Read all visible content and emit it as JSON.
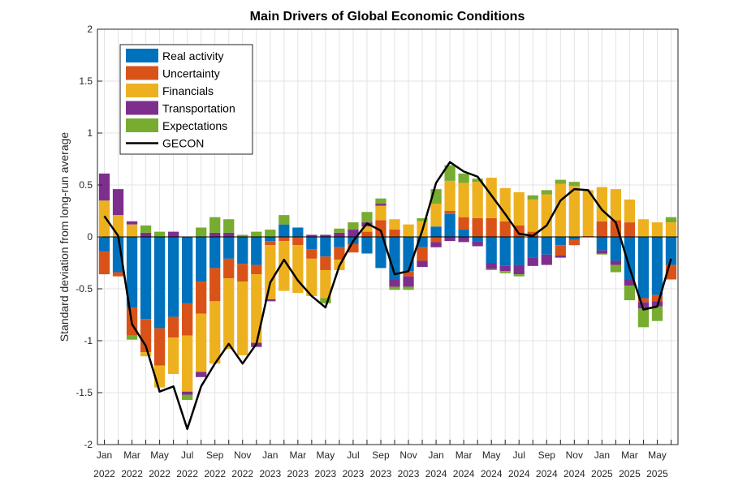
{
  "chart_data": {
    "type": "bar",
    "stacked": true,
    "title": "Main Drivers of Global Economic Conditions",
    "xlabel": "",
    "ylabel": "Standard deviation from long-run average",
    "ylim": [
      -2,
      2
    ],
    "yticks": [
      "-2",
      "-1.5",
      "-1",
      "-0.5",
      "0",
      "0.5",
      "1",
      "1.5",
      "2"
    ],
    "grid": true,
    "legend_position": "top-left",
    "categories": [
      "Jan 2022",
      "Feb 2022",
      "Mar 2022",
      "Apr 2022",
      "May 2022",
      "Jun 2022",
      "Jul 2022",
      "Aug 2022",
      "Sep 2022",
      "Oct 2022",
      "Nov 2022",
      "Dec 2022",
      "Jan 2023",
      "Feb 2023",
      "Mar 2023",
      "Apr 2023",
      "May 2023",
      "Jun 2023",
      "Jul 2023",
      "Aug 2023",
      "Sep 2023",
      "Oct 2023",
      "Nov 2023",
      "Dec 2023",
      "Jan 2024",
      "Feb 2024",
      "Mar 2024",
      "Apr 2024",
      "May 2024",
      "Jun 2024",
      "Jul 2024",
      "Aug 2024",
      "Sep 2024",
      "Oct 2024",
      "Nov 2024",
      "Dec 2024",
      "Jan 2025",
      "Feb 2025",
      "Mar 2025",
      "Apr 2025",
      "May 2025",
      "Jun 2025"
    ],
    "xticks": [
      {
        "month": "Jan",
        "year": "2022",
        "index": 0
      },
      {
        "month": "Mar",
        "year": "2022",
        "index": 2
      },
      {
        "month": "May",
        "year": "2022",
        "index": 4
      },
      {
        "month": "Jul",
        "year": "2022",
        "index": 6
      },
      {
        "month": "Sep",
        "year": "2022",
        "index": 8
      },
      {
        "month": "Nov",
        "year": "2022",
        "index": 10
      },
      {
        "month": "Jan",
        "year": "2023",
        "index": 12
      },
      {
        "month": "Mar",
        "year": "2023",
        "index": 14
      },
      {
        "month": "May",
        "year": "2023",
        "index": 16
      },
      {
        "month": "Jul",
        "year": "2023",
        "index": 18
      },
      {
        "month": "Sep",
        "year": "2023",
        "index": 20
      },
      {
        "month": "Nov",
        "year": "2023",
        "index": 22
      },
      {
        "month": "Jan",
        "year": "2024",
        "index": 24
      },
      {
        "month": "Mar",
        "year": "2024",
        "index": 26
      },
      {
        "month": "May",
        "year": "2024",
        "index": 28
      },
      {
        "month": "Jul",
        "year": "2024",
        "index": 30
      },
      {
        "month": "Sep",
        "year": "2024",
        "index": 32
      },
      {
        "month": "Nov",
        "year": "2024",
        "index": 34
      },
      {
        "month": "Jan",
        "year": "2025",
        "index": 36
      },
      {
        "month": "Mar",
        "year": "2025",
        "index": 38
      },
      {
        "month": "May",
        "year": "2025",
        "index": 40
      }
    ],
    "series": [
      {
        "name": "Real activity",
        "color": "#0072BD",
        "values": [
          -0.14,
          -0.34,
          -0.68,
          -0.79,
          -0.88,
          -0.77,
          -0.64,
          -0.43,
          -0.3,
          -0.21,
          -0.26,
          -0.27,
          -0.04,
          0.12,
          0.09,
          -0.12,
          -0.19,
          -0.1,
          -0.07,
          -0.16,
          -0.3,
          -0.41,
          -0.33,
          -0.1,
          0.1,
          0.22,
          0.07,
          -0.04,
          -0.25,
          -0.28,
          -0.27,
          -0.2,
          -0.17,
          -0.08,
          -0.03,
          0,
          -0.13,
          -0.23,
          -0.41,
          -0.59,
          -0.56,
          -0.27
        ]
      },
      {
        "name": "Uncertainty",
        "color": "#D95319",
        "values": [
          -0.22,
          -0.04,
          -0.27,
          -0.32,
          -0.36,
          -0.2,
          -0.31,
          -0.31,
          -0.32,
          -0.19,
          -0.17,
          -0.09,
          -0.04,
          -0.04,
          -0.08,
          -0.09,
          -0.13,
          -0.12,
          -0.08,
          0.05,
          0.16,
          0.07,
          -0.05,
          -0.13,
          -0.05,
          0.03,
          0.12,
          0.18,
          0.18,
          0.15,
          0.11,
          0.05,
          0,
          -0.1,
          -0.05,
          0.01,
          0.15,
          0.16,
          0.14,
          -0.04,
          -0.06,
          -0.14
        ]
      },
      {
        "name": "Financials",
        "color": "#EDB120",
        "values": [
          0.35,
          0.21,
          0.12,
          -0.04,
          -0.21,
          -0.35,
          -0.54,
          -0.56,
          -0.6,
          -0.68,
          -0.71,
          -0.66,
          -0.52,
          -0.48,
          -0.46,
          -0.36,
          -0.27,
          -0.1,
          0,
          0.05,
          0.14,
          0.1,
          0.12,
          0.15,
          0.22,
          0.29,
          0.33,
          0.35,
          0.39,
          0.32,
          0.32,
          0.31,
          0.41,
          0.51,
          0.49,
          0.44,
          0.33,
          0.3,
          0.22,
          0.17,
          0.14,
          0.14
        ]
      },
      {
        "name": "Transportation",
        "color": "#7E2F8E",
        "values": [
          0.26,
          0.25,
          0.03,
          0.04,
          0,
          0.05,
          -0.03,
          -0.05,
          0.04,
          0.04,
          0,
          -0.04,
          -0.02,
          0,
          0,
          0.02,
          0.02,
          0.04,
          0.07,
          0.04,
          0.02,
          -0.07,
          -0.1,
          -0.06,
          -0.05,
          -0.04,
          -0.05,
          -0.05,
          -0.06,
          -0.05,
          -0.09,
          -0.08,
          -0.1,
          -0.02,
          0,
          0,
          -0.03,
          -0.04,
          -0.06,
          -0.06,
          -0.05,
          0
        ]
      },
      {
        "name": "Expectations",
        "color": "#77AC30",
        "values": [
          0,
          0,
          -0.04,
          0.07,
          0.05,
          0,
          -0.05,
          0.09,
          0.15,
          0.13,
          0.02,
          0.05,
          0.07,
          0.09,
          0,
          0,
          -0.05,
          0.04,
          0.07,
          0.1,
          0.05,
          -0.03,
          -0.03,
          0.03,
          0.14,
          0.15,
          0.09,
          0.03,
          -0.01,
          -0.02,
          -0.02,
          0.04,
          0.04,
          0.04,
          0.04,
          0,
          -0.01,
          -0.07,
          -0.14,
          -0.18,
          -0.14,
          0.05
        ]
      }
    ],
    "line": {
      "name": "GECON",
      "color": "#000000",
      "values": [
        0.2,
        0.01,
        -0.84,
        -1.05,
        -1.49,
        -1.44,
        -1.85,
        -1.44,
        -1.22,
        -1.03,
        -1.22,
        -1.03,
        -0.44,
        -0.22,
        -0.42,
        -0.57,
        -0.68,
        -0.28,
        -0.04,
        0.13,
        0.06,
        -0.36,
        -0.33,
        0.06,
        0.52,
        0.72,
        0.63,
        0.58,
        0.4,
        0.22,
        0.03,
        0.01,
        0.11,
        0.35,
        0.46,
        0.45,
        0.26,
        0.14,
        -0.3,
        -0.7,
        -0.67,
        -0.21
      ]
    }
  }
}
